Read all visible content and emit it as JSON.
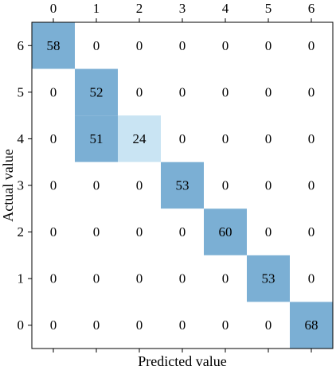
{
  "chart_data": {
    "type": "heatmap",
    "title": "",
    "xlabel": "Predicted value",
    "ylabel": "Actual value",
    "x_categories": [
      "0",
      "1",
      "2",
      "3",
      "4",
      "5",
      "6"
    ],
    "y_categories": [
      "6",
      "5",
      "4",
      "3",
      "2",
      "1",
      "0"
    ],
    "values": [
      [
        "58",
        "0",
        "0",
        "0",
        "0",
        "0",
        "0"
      ],
      [
        "0",
        "52",
        "0",
        "0",
        "0",
        "0",
        "0"
      ],
      [
        "0",
        "51",
        "24",
        "0",
        "0",
        "0",
        "0"
      ],
      [
        "0",
        "0",
        "0",
        "53",
        "0",
        "0",
        "0"
      ],
      [
        "0",
        "0",
        "0",
        "0",
        "60",
        "0",
        "0"
      ],
      [
        "0",
        "0",
        "0",
        "0",
        "0",
        "53",
        "0"
      ],
      [
        "0",
        "0",
        "0",
        "0",
        "0",
        "0",
        "68"
      ]
    ],
    "x_axis_position": "top",
    "grid": false,
    "colors": {
      "high": "#7bafd4",
      "low": "#c9e4f3",
      "zero": "#ffffff",
      "frame": "#000000"
    }
  }
}
